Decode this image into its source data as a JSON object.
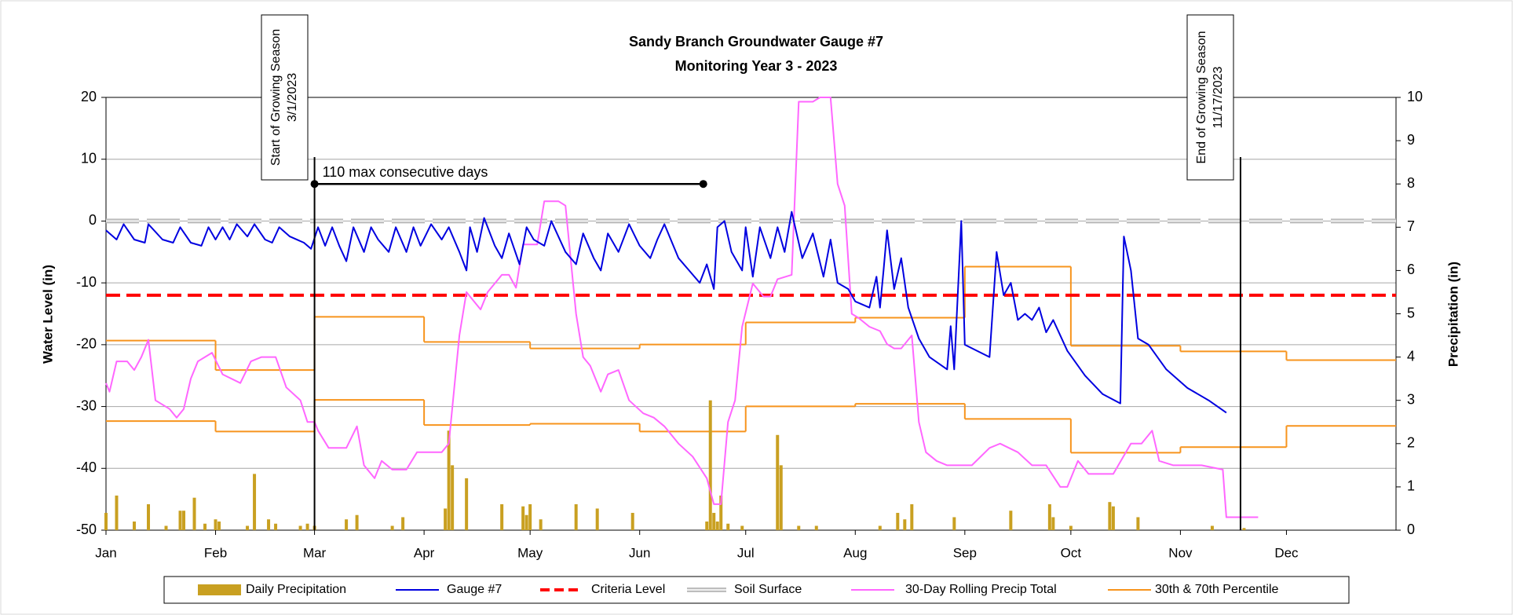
{
  "chart_data": {
    "type": "combo",
    "title": "Sandy Branch Groundwater Gauge #7",
    "subtitle": "Monitoring Year 3 - 2023",
    "y_label": "Water Level (in)",
    "y2_label": "Precipitation (in)",
    "xlim": [
      0,
      365
    ],
    "xticks": [
      {
        "value": 0,
        "label": "Jan"
      },
      {
        "value": 31,
        "label": "Feb"
      },
      {
        "value": 59,
        "label": "Mar"
      },
      {
        "value": 90,
        "label": "Apr"
      },
      {
        "value": 120,
        "label": "May"
      },
      {
        "value": 151,
        "label": "Jun"
      },
      {
        "value": 181,
        "label": "Jul"
      },
      {
        "value": 212,
        "label": "Aug"
      },
      {
        "value": 243,
        "label": "Sep"
      },
      {
        "value": 273,
        "label": "Oct"
      },
      {
        "value": 304,
        "label": "Nov"
      },
      {
        "value": 334,
        "label": "Dec"
      }
    ],
    "ylim": [
      -50,
      20
    ],
    "yticks": [
      -50,
      -40,
      -30,
      -20,
      -10,
      0,
      10,
      20
    ],
    "y2lim": [
      0,
      10
    ],
    "y2ticks": [
      0,
      1,
      2,
      3,
      4,
      5,
      6,
      7,
      8,
      9,
      10
    ],
    "grid": true,
    "legend": "bottom",
    "series": [
      {
        "name": "Daily Precipitation",
        "style": "bar",
        "axis": "y2",
        "color": "#c9a021",
        "x": [
          0,
          3,
          8,
          12,
          17,
          21,
          22,
          25,
          28,
          31,
          32,
          40,
          42,
          46,
          48,
          55,
          57,
          59,
          68,
          71,
          81,
          84,
          96,
          97,
          98,
          102,
          112,
          118,
          119,
          120,
          123,
          133,
          139,
          149,
          170,
          171,
          172,
          173,
          174,
          176,
          180,
          190,
          191,
          196,
          201,
          219,
          224,
          226,
          228,
          240,
          256,
          267,
          268,
          273,
          284,
          285,
          292,
          313,
          322
        ],
        "values": [
          0.4,
          0.8,
          0.2,
          0.6,
          0.1,
          0.45,
          0.45,
          0.75,
          0.15,
          0.25,
          0.2,
          0.1,
          1.3,
          0.25,
          0.15,
          0.1,
          0.15,
          0.1,
          0.25,
          0.35,
          0.1,
          0.3,
          0.5,
          2.3,
          1.5,
          1.2,
          0.6,
          0.55,
          0.35,
          0.6,
          0.25,
          0.6,
          0.5,
          0.4,
          0.2,
          3.0,
          0.4,
          0.2,
          0.8,
          0.15,
          0.1,
          2.2,
          1.5,
          0.1,
          0.1,
          0.1,
          0.4,
          0.25,
          0.6,
          0.3,
          0.45,
          0.6,
          0.3,
          0.1,
          0.65,
          0.55,
          0.3,
          0.1,
          0.05
        ]
      },
      {
        "name": "Gauge #7",
        "style": "line",
        "axis": "y",
        "color": "#0000e0",
        "x": [
          0,
          3,
          5,
          8,
          11,
          12,
          16,
          19,
          21,
          24,
          27,
          29,
          31,
          33,
          35,
          37,
          40,
          42,
          45,
          47,
          49,
          52,
          56,
          58,
          60,
          62,
          64,
          66,
          68,
          70,
          73,
          75,
          77,
          80,
          82,
          85,
          87,
          89,
          92,
          95,
          97,
          100,
          102,
          103,
          105,
          107,
          110,
          112,
          114,
          117,
          119,
          121,
          124,
          126,
          130,
          133,
          135,
          138,
          140,
          142,
          145,
          148,
          151,
          154,
          156,
          158,
          162,
          165,
          168,
          170,
          172,
          173,
          175,
          177,
          180,
          181,
          183,
          185,
          188,
          190,
          192,
          194,
          197,
          200,
          203,
          205,
          207,
          210,
          212,
          216,
          218,
          219,
          220,
          221,
          223,
          225,
          227,
          230,
          233,
          238,
          239,
          240,
          242,
          243,
          250,
          252,
          254,
          256,
          258,
          260,
          262,
          264,
          266,
          268,
          272,
          277,
          282,
          287,
          288,
          290,
          292,
          295,
          300,
          306,
          312,
          317
        ],
        "values": [
          -1.5,
          -3,
          -0.5,
          -3,
          -3.5,
          -0.5,
          -3,
          -3.5,
          -1,
          -3.5,
          -4,
          -1,
          -3,
          -1,
          -3,
          -0.5,
          -2.5,
          -0.5,
          -3,
          -3.5,
          -1,
          -2.5,
          -3.5,
          -4.5,
          -1,
          -4,
          -1,
          -4,
          -6.5,
          -1,
          -5,
          -1,
          -3,
          -5,
          -1,
          -5,
          -1,
          -4,
          -0.5,
          -3,
          -1,
          -5,
          -8,
          -1,
          -5,
          0.5,
          -4,
          -6,
          -2,
          -7,
          -1,
          -3,
          -4,
          0,
          -5,
          -7,
          -2,
          -6,
          -8,
          -2,
          -5,
          -0.5,
          -4,
          -6,
          -3,
          -0.5,
          -6,
          -8,
          -10,
          -7,
          -11,
          -1,
          0,
          -5,
          -8,
          -1,
          -9,
          -1,
          -6,
          -1,
          -5,
          1.5,
          -6,
          -2,
          -9,
          -3,
          -10,
          -11,
          -13,
          -14,
          -9,
          -14,
          -8,
          -1.5,
          -11,
          -6,
          -14,
          -19,
          -22,
          -24,
          -17,
          -24,
          0,
          -20,
          -22,
          -5,
          -12,
          -10,
          -16,
          -15,
          -16,
          -14,
          -18,
          -16,
          -21,
          -25,
          -28,
          -29.5,
          -2.5,
          -8,
          -19,
          -20,
          -24,
          -27,
          -29,
          -31
        ]
      },
      {
        "name": "Criteria Level",
        "style": "hline",
        "axis": "y",
        "color": "#ff0000",
        "value": -12
      },
      {
        "name": "Soil Surface",
        "style": "hline",
        "axis": "y",
        "color": "#bdbdbd",
        "value": 0
      },
      {
        "name": "30-Day Rolling Precip Total",
        "style": "line",
        "axis": "y2",
        "color": "#ff66ff",
        "x": [
          0,
          1,
          3,
          6,
          8,
          10,
          12,
          14,
          18,
          20,
          22,
          24,
          26,
          28,
          30,
          33,
          38,
          41,
          44,
          48,
          51,
          55,
          57,
          59,
          60,
          63,
          68,
          71,
          73,
          76,
          78,
          81,
          85,
          88,
          95,
          97,
          100,
          102,
          104,
          106,
          108,
          112,
          114,
          116,
          118,
          122,
          124,
          128,
          130,
          133,
          135,
          137,
          140,
          142,
          145,
          148,
          152,
          155,
          158,
          162,
          166,
          170,
          172,
          174,
          176,
          178,
          180,
          183,
          186,
          188,
          190,
          194,
          196,
          200,
          202,
          205,
          207,
          209,
          211,
          213,
          216,
          219,
          221,
          223,
          225,
          228,
          230,
          232,
          235,
          238,
          245,
          250,
          253,
          258,
          262,
          266,
          270,
          272,
          275,
          278,
          285,
          290,
          293,
          296,
          298,
          302,
          310,
          316,
          317,
          326
        ],
        "values": [
          3.4,
          3.2,
          3.9,
          3.9,
          3.7,
          4.0,
          4.4,
          3.0,
          2.8,
          2.6,
          2.8,
          3.5,
          3.9,
          4.0,
          4.1,
          3.6,
          3.4,
          3.9,
          4.0,
          4.0,
          3.3,
          3.0,
          2.5,
          2.5,
          2.3,
          1.9,
          1.9,
          2.4,
          1.5,
          1.2,
          1.6,
          1.4,
          1.4,
          1.8,
          1.8,
          2.0,
          4.5,
          5.5,
          5.3,
          5.1,
          5.5,
          5.9,
          5.9,
          5.6,
          6.6,
          6.6,
          7.6,
          7.6,
          7.5,
          5.0,
          4.0,
          3.8,
          3.2,
          3.6,
          3.7,
          3.0,
          2.7,
          2.6,
          2.4,
          2.0,
          1.7,
          1.2,
          0.6,
          0.6,
          2.5,
          3.0,
          4.7,
          5.7,
          5.4,
          5.4,
          5.8,
          5.9,
          9.9,
          9.9,
          10,
          10,
          8.0,
          7.5,
          5.0,
          4.9,
          4.7,
          4.6,
          4.3,
          4.2,
          4.2,
          4.5,
          2.5,
          1.8,
          1.6,
          1.5,
          1.5,
          1.9,
          2.0,
          1.8,
          1.5,
          1.5,
          1.0,
          1.0,
          1.6,
          1.3,
          1.3,
          2.0,
          2.0,
          2.3,
          1.6,
          1.5,
          1.5,
          1.4,
          0.3,
          0.3
        ]
      },
      {
        "name": "30th & 70th Percentile",
        "style": "steps",
        "axis": "y2",
        "color": "#f7941d",
        "x": [
          0,
          31,
          59,
          90,
          120,
          151,
          181,
          212,
          243,
          273,
          304,
          334
        ],
        "upper": [
          4.38,
          3.7,
          4.93,
          4.35,
          4.2,
          4.29,
          4.8,
          4.91,
          6.09,
          4.26,
          4.13,
          3.93
        ],
        "lower": [
          2.52,
          2.28,
          3.01,
          2.43,
          2.46,
          2.28,
          2.86,
          2.92,
          2.57,
          1.79,
          1.92,
          2.41
        ]
      }
    ],
    "annotations": {
      "season_start": {
        "lines": [
          "Start of Growing Season",
          "3/1/2023"
        ],
        "x": 59
      },
      "season_end": {
        "lines": [
          "End of Growing Season",
          "11/17/2023"
        ],
        "x": 321
      },
      "max_consecutive": {
        "text": "110 max consecutive days",
        "x": [
          59,
          169
        ],
        "y": 6
      }
    }
  }
}
